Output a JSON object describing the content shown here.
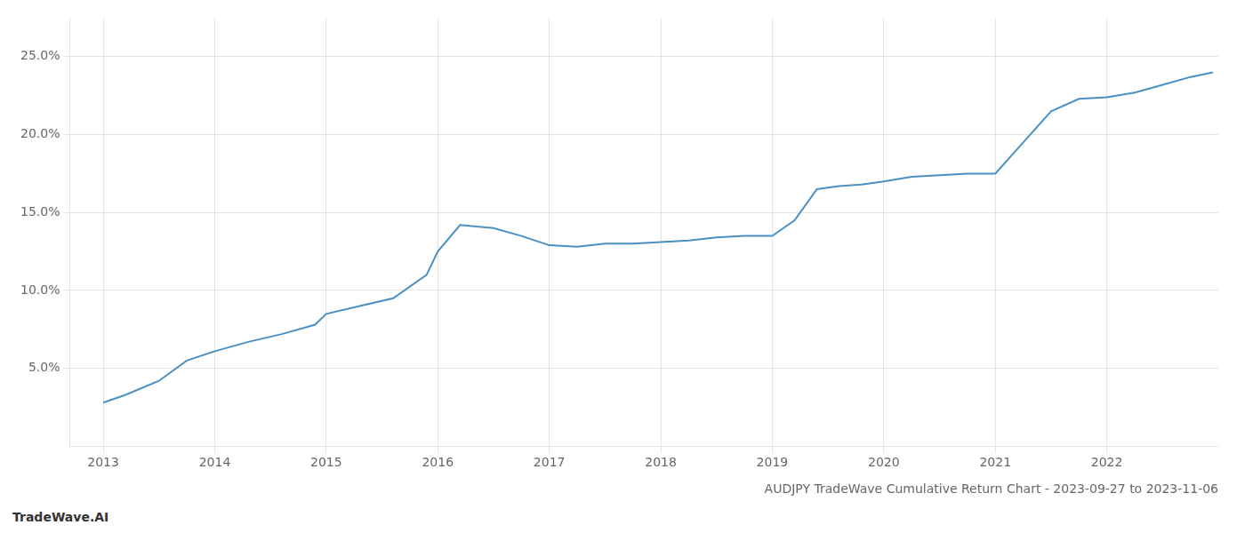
{
  "chart_data": {
    "type": "line",
    "title": "AUDJPY TradeWave Cumulative Return Chart - 2023-09-27 to 2023-11-06",
    "annotations": [
      "TradeWave.AI"
    ],
    "x": [
      2013.0,
      2013.2,
      2013.5,
      2013.75,
      2014.0,
      2014.3,
      2014.6,
      2014.9,
      2015.0,
      2015.3,
      2015.6,
      2015.9,
      2016.0,
      2016.2,
      2016.5,
      2016.75,
      2017.0,
      2017.25,
      2017.5,
      2017.75,
      2018.0,
      2018.25,
      2018.5,
      2018.75,
      2019.0,
      2019.2,
      2019.4,
      2019.6,
      2019.8,
      2020.0,
      2020.25,
      2020.5,
      2020.75,
      2021.0,
      2021.25,
      2021.5,
      2021.75,
      2022.0,
      2022.25,
      2022.5,
      2022.75,
      2022.95
    ],
    "values": [
      2.8,
      3.3,
      4.2,
      5.5,
      6.1,
      6.7,
      7.2,
      7.8,
      8.5,
      9.0,
      9.5,
      11.0,
      12.5,
      14.2,
      14.0,
      13.5,
      12.9,
      12.8,
      13.0,
      13.0,
      13.1,
      13.2,
      13.4,
      13.5,
      13.5,
      14.5,
      16.5,
      16.7,
      16.8,
      17.0,
      17.3,
      17.4,
      17.5,
      17.5,
      19.5,
      21.5,
      22.3,
      22.4,
      22.7,
      23.2,
      23.7,
      24.0
    ],
    "color": "#4a90c4",
    "xlim": [
      2012.7,
      2023.0
    ],
    "ylim": [
      0.0,
      27.5
    ],
    "xticks": [
      2013,
      2014,
      2015,
      2016,
      2017,
      2018,
      2019,
      2020,
      2021,
      2022
    ],
    "yticks": [
      {
        "value": 5.0,
        "label": "5.0%"
      },
      {
        "value": 10.0,
        "label": "10.0%"
      },
      {
        "value": 15.0,
        "label": "15.0%"
      },
      {
        "value": 20.0,
        "label": "20.0%"
      },
      {
        "value": 25.0,
        "label": "25.0%"
      }
    ],
    "grid": true
  }
}
